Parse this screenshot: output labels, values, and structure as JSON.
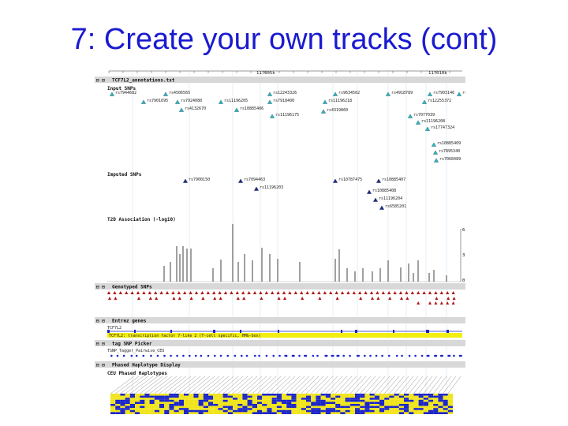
{
  "slide": {
    "title": "7: Create your own tracks (cont)"
  },
  "ruler": {
    "left_label": "117005k",
    "right_label": "117010k"
  },
  "tracks": {
    "annotations": {
      "label": "TCF7L2_annotations.txt"
    },
    "input_snps": {
      "label": "Input SNPs",
      "rows": [
        [
          "rs7944682",
          "rs4506565",
          "rs12243326",
          "rs9634502",
          "rs4918789",
          "rs7903146",
          "rs12"
        ],
        [
          "rs7901695",
          "rs7924080",
          "rs11196205",
          "rs7918400",
          "rs11196218",
          "rs12255372"
        ],
        [
          "rs4132670",
          "rs10885406",
          "rs11196175",
          "rs4319860",
          "rs7077039",
          "rs11196208",
          "rs17747324"
        ],
        [
          "rs10885409",
          "rs7895340",
          "rs7068489"
        ]
      ]
    },
    "imputed_snps": {
      "label": "Imputed SNPs",
      "rows": [
        [
          "rs7900150",
          "rs7094463",
          "rs10787475",
          "rs10885407"
        ],
        [
          "rs11196203",
          "rs10885408",
          "rs11196204",
          "rs6585201"
        ]
      ]
    },
    "association": {
      "label": "T2D Association (-log10)",
      "scale_top": "6",
      "scale_mid": "3",
      "scale_bottom": "0"
    },
    "genotyped": {
      "label": "Genotyped SNPs"
    },
    "entrez": {
      "label": "Entrez genes",
      "gene_name": "TCF7L2",
      "gene_desc": "TCF7L2: transcription factor 7-like 2 (T-cell specific, HMG-box)"
    },
    "tag_snp": {
      "label": "tag SNP Picker",
      "population": "TSNP_Tagger_Pairwise_CEU"
    },
    "haplotype": {
      "label": "Phased Haplotype Display",
      "sub_label": "CEU Phased Haplotypes"
    }
  },
  "colors": {
    "title": "#1a1ad0",
    "snp_triangle_input": "#27b5c4",
    "snp_triangle_imputed": "#1a2a8c",
    "genotyped_triangle": "#b01818",
    "gene_highlight": "#f2ee10",
    "haplotype_major": "#f0e41a",
    "haplotype_minor": "#1a24c8"
  }
}
